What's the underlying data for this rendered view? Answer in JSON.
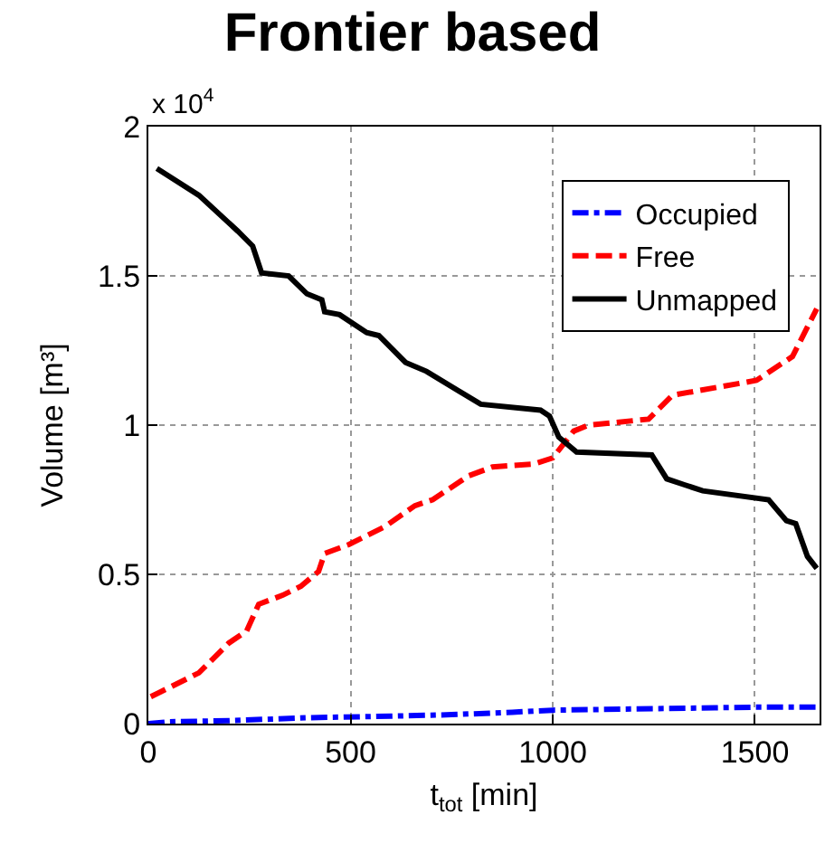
{
  "chart_data": {
    "type": "line",
    "title": "Frontier based",
    "xlabel": "t$_{tot}$ [min]",
    "ylabel": "Volume [m³]",
    "annotations": [
      "x 10$^{4}$"
    ],
    "xlim": [
      0,
      1660
    ],
    "xticks": [
      0,
      500,
      1000,
      1500
    ],
    "ylim": [
      0,
      2
    ],
    "yticks": [
      0,
      0.5,
      1,
      1.5,
      2
    ],
    "grid": true,
    "legend": "top right",
    "marker": "none",
    "series": [
      {
        "name": "Occupied",
        "color": "#0000ff",
        "line_style": "dashdot",
        "x": [
          0,
          50,
          200,
          400,
          600,
          750,
          900,
          1000,
          1100,
          1250,
          1400,
          1500,
          1650
        ],
        "values": [
          0,
          0.006,
          0.01,
          0.02,
          0.025,
          0.03,
          0.038,
          0.045,
          0.047,
          0.05,
          0.053,
          0.055,
          0.055
        ]
      },
      {
        "name": "Free",
        "color": "#ff0000",
        "line_style": "dashed",
        "x": [
          6,
          125,
          199,
          243,
          273,
          332,
          377,
          421,
          436,
          496,
          585,
          659,
          703,
          792,
          851,
          955,
          1000,
          1052,
          1089,
          1237,
          1296,
          1504,
          1593,
          1653
        ],
        "values": [
          0.09,
          0.17,
          0.27,
          0.31,
          0.4,
          0.43,
          0.46,
          0.51,
          0.57,
          0.6,
          0.66,
          0.73,
          0.75,
          0.83,
          0.86,
          0.87,
          0.89,
          0.98,
          1.0,
          1.02,
          1.1,
          1.15,
          1.23,
          1.39
        ]
      },
      {
        "name": "Unmapped",
        "color": "#000000",
        "line_style": "solid",
        "x": [
          21,
          125,
          221,
          258,
          280,
          347,
          392,
          429,
          436,
          473,
          540,
          570,
          636,
          688,
          822,
          970,
          992,
          1015,
          1059,
          1245,
          1282,
          1326,
          1371,
          1534,
          1578,
          1601,
          1630,
          1653
        ],
        "values": [
          1.86,
          1.77,
          1.65,
          1.6,
          1.51,
          1.5,
          1.44,
          1.42,
          1.38,
          1.37,
          1.31,
          1.3,
          1.21,
          1.18,
          1.07,
          1.05,
          1.03,
          0.96,
          0.91,
          0.9,
          0.82,
          0.8,
          0.78,
          0.75,
          0.68,
          0.67,
          0.56,
          0.52
        ]
      }
    ]
  }
}
